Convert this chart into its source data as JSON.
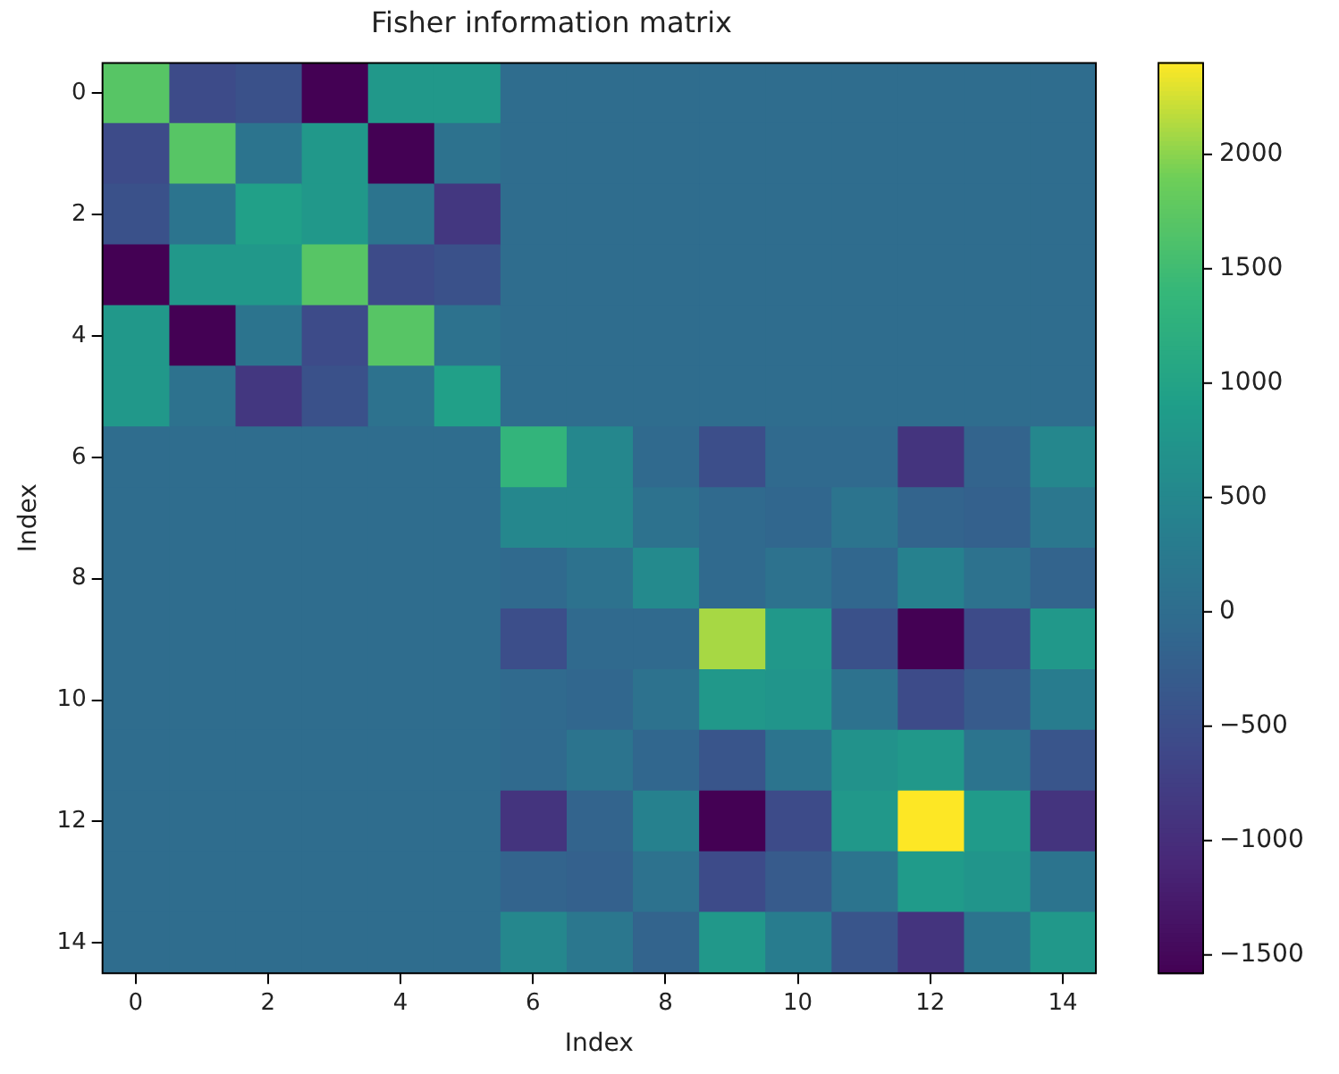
{
  "chart_data": {
    "type": "heatmap",
    "title": "Fisher information matrix",
    "xlabel": "Index",
    "ylabel": "Index",
    "categories": [
      "0",
      null,
      "2",
      null,
      "4",
      null,
      "6",
      null,
      "8",
      null,
      "10",
      null,
      "12",
      null,
      "14"
    ],
    "y_categories": [
      "0",
      null,
      "2",
      null,
      "4",
      null,
      "6",
      null,
      "8",
      null,
      "10",
      null,
      "12",
      null,
      "14"
    ],
    "cells": [
      [
        1700,
        -550,
        -450,
        -1580,
        800,
        800,
        0,
        0,
        0,
        0,
        0,
        0,
        0,
        0,
        0
      ],
      [
        -550,
        1700,
        150,
        800,
        -1580,
        100,
        0,
        0,
        0,
        0,
        0,
        0,
        0,
        0,
        0
      ],
      [
        -450,
        150,
        950,
        800,
        150,
        -850,
        0,
        0,
        0,
        0,
        0,
        0,
        0,
        0,
        0
      ],
      [
        -1580,
        800,
        800,
        1700,
        -550,
        -450,
        0,
        0,
        0,
        0,
        0,
        0,
        0,
        0,
        0
      ],
      [
        800,
        -1580,
        150,
        -550,
        1700,
        100,
        0,
        0,
        0,
        0,
        0,
        0,
        0,
        0,
        0
      ],
      [
        800,
        100,
        -850,
        -450,
        100,
        950,
        0,
        0,
        0,
        0,
        0,
        0,
        0,
        0,
        0
      ],
      [
        0,
        0,
        0,
        0,
        0,
        0,
        1350,
        500,
        -50,
        -500,
        -50,
        -50,
        -900,
        -150,
        500
      ],
      [
        0,
        0,
        0,
        0,
        0,
        0,
        500,
        500,
        100,
        -50,
        -100,
        150,
        -150,
        -200,
        200
      ],
      [
        0,
        0,
        0,
        0,
        0,
        0,
        -50,
        100,
        550,
        -50,
        100,
        -100,
        400,
        100,
        -150
      ],
      [
        0,
        0,
        0,
        0,
        0,
        0,
        -500,
        -50,
        -50,
        2100,
        800,
        -450,
        -1580,
        -550,
        800
      ],
      [
        0,
        0,
        0,
        0,
        0,
        0,
        -50,
        -100,
        100,
        800,
        750,
        100,
        -550,
        -300,
        300
      ],
      [
        0,
        0,
        0,
        0,
        0,
        0,
        -50,
        150,
        -100,
        -400,
        150,
        700,
        800,
        150,
        -400
      ],
      [
        0,
        0,
        0,
        0,
        0,
        0,
        -900,
        -150,
        400,
        -1580,
        -550,
        800,
        2400,
        850,
        -900
      ],
      [
        0,
        0,
        0,
        0,
        0,
        0,
        -150,
        -200,
        100,
        -550,
        -300,
        150,
        850,
        750,
        150
      ],
      [
        0,
        0,
        0,
        0,
        0,
        0,
        500,
        200,
        -150,
        800,
        300,
        -400,
        -900,
        150,
        800
      ]
    ],
    "clim": [
      -1580,
      2400
    ],
    "cticks": [
      -1500,
      -1000,
      -500,
      0,
      500,
      1000,
      1500,
      2000
    ]
  }
}
